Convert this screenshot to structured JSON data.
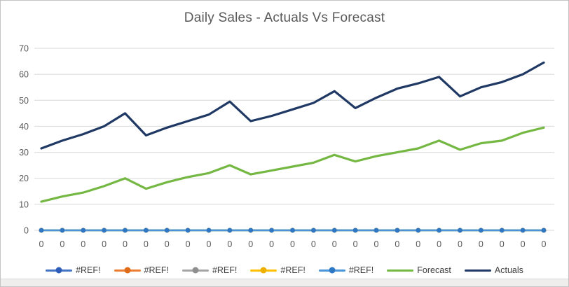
{
  "frame": {
    "background": "#ffffff",
    "border_color": "#c4c4c4",
    "bottom_strip_color": "#f0eeec"
  },
  "chart_data": {
    "type": "line",
    "title": "Daily Sales - Actuals Vs Forecast",
    "title_color": "#595959",
    "xlabel": "",
    "ylabel": "",
    "ylim": [
      0,
      70
    ],
    "yticks": [
      0,
      10,
      20,
      30,
      40,
      50,
      60,
      70
    ],
    "grid": true,
    "gridline_color": "#d9d9d9",
    "axis_label_color": "#595959",
    "legend_position": "bottom",
    "categories": [
      "0",
      "0",
      "0",
      "0",
      "0",
      "0",
      "0",
      "0",
      "0",
      "0",
      "0",
      "0",
      "0",
      "0",
      "0",
      "0",
      "0",
      "0",
      "0",
      "0",
      "0",
      "0",
      "0",
      "0",
      "0"
    ],
    "series": [
      {
        "id": "ref-1",
        "name": "#REF!",
        "color": "#4472c4",
        "marker": true,
        "marker_color": "#2d5fba",
        "width": 2.8,
        "values": [
          0,
          0,
          0,
          0,
          0,
          0,
          0,
          0,
          0,
          0,
          0,
          0,
          0,
          0,
          0,
          0,
          0,
          0,
          0,
          0,
          0,
          0,
          0,
          0,
          0
        ]
      },
      {
        "id": "ref-2",
        "name": "#REF!",
        "color": "#ed7d31",
        "marker": true,
        "marker_color": "#e06b1a",
        "width": 2.8,
        "values": [
          0,
          0,
          0,
          0,
          0,
          0,
          0,
          0,
          0,
          0,
          0,
          0,
          0,
          0,
          0,
          0,
          0,
          0,
          0,
          0,
          0,
          0,
          0,
          0,
          0
        ]
      },
      {
        "id": "ref-3",
        "name": "#REF!",
        "color": "#a5a5a5",
        "marker": true,
        "marker_color": "#8f8f8f",
        "width": 2.8,
        "values": [
          0,
          0,
          0,
          0,
          0,
          0,
          0,
          0,
          0,
          0,
          0,
          0,
          0,
          0,
          0,
          0,
          0,
          0,
          0,
          0,
          0,
          0,
          0,
          0,
          0
        ]
      },
      {
        "id": "ref-4",
        "name": "#REF!",
        "color": "#ffc000",
        "marker": true,
        "marker_color": "#edb000",
        "width": 2.8,
        "values": [
          0,
          0,
          0,
          0,
          0,
          0,
          0,
          0,
          0,
          0,
          0,
          0,
          0,
          0,
          0,
          0,
          0,
          0,
          0,
          0,
          0,
          0,
          0,
          0,
          0
        ]
      },
      {
        "id": "ref-5",
        "name": "#REF!",
        "color": "#4a94d8",
        "marker": true,
        "marker_color": "#2e77c5",
        "width": 2.8,
        "values": [
          0,
          0,
          0,
          0,
          0,
          0,
          0,
          0,
          0,
          0,
          0,
          0,
          0,
          0,
          0,
          0,
          0,
          0,
          0,
          0,
          0,
          0,
          0,
          0,
          0
        ]
      },
      {
        "id": "forecast",
        "name": "Forecast",
        "color": "#74b843",
        "marker": false,
        "width": 3.2,
        "values": [
          11,
          13,
          14.5,
          17,
          20,
          16,
          18.5,
          20.5,
          22,
          25,
          21.5,
          23,
          24.5,
          26,
          29,
          26.5,
          28.5,
          30,
          31.5,
          34.5,
          31,
          33.5,
          34.5,
          37.5,
          39.5
        ]
      },
      {
        "id": "actuals",
        "name": "Actuals",
        "color": "#1f3864",
        "marker": false,
        "width": 3.2,
        "values": [
          31.5,
          34.5,
          37,
          40,
          45,
          36.5,
          39.5,
          42,
          44.5,
          49.5,
          42,
          44,
          46.5,
          49,
          53.5,
          47,
          51,
          54.5,
          56.5,
          59,
          51.5,
          55,
          57,
          60,
          64.5
        ]
      }
    ]
  }
}
